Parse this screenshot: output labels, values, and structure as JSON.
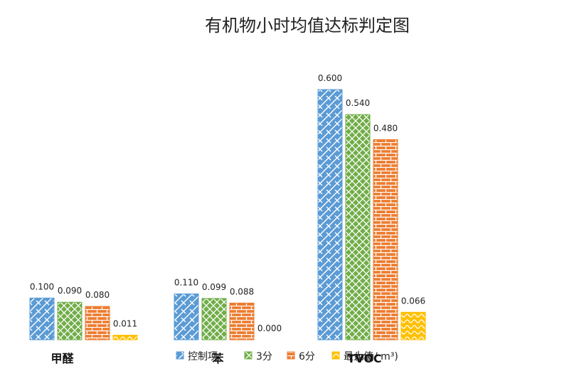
{
  "chart_data": {
    "type": "bar",
    "title": "有机物小时均值达标判定图",
    "unit": "(mg/ m³)",
    "categories": [
      "甲醛",
      "苯",
      "TVOC"
    ],
    "series": [
      {
        "name": "控制项",
        "values": [
          0.1,
          0.11,
          0.6
        ],
        "labels": [
          "0.100",
          "0.110",
          "0.600"
        ],
        "color": "#5b9bd5",
        "pattern": "bricks-diagonal"
      },
      {
        "name": "3分",
        "values": [
          0.09,
          0.099,
          0.54
        ],
        "labels": [
          "0.090",
          "0.099",
          "0.540"
        ],
        "color": "#70ad47",
        "pattern": "diamond-lattice"
      },
      {
        "name": "6分",
        "values": [
          0.08,
          0.088,
          0.48
        ],
        "labels": [
          "0.080",
          "0.088",
          "0.480"
        ],
        "color": "#ed7d31",
        "pattern": "bricks"
      },
      {
        "name": "最大值",
        "values": [
          0.011,
          0.0,
          0.066
        ],
        "labels": [
          "0.011",
          "0.000",
          "0.066"
        ],
        "color": "#ffc000",
        "pattern": "waves"
      }
    ],
    "ylim": [
      0,
      0.6
    ],
    "legend": "bottom",
    "grid": false,
    "xlabel": "",
    "ylabel": ""
  }
}
